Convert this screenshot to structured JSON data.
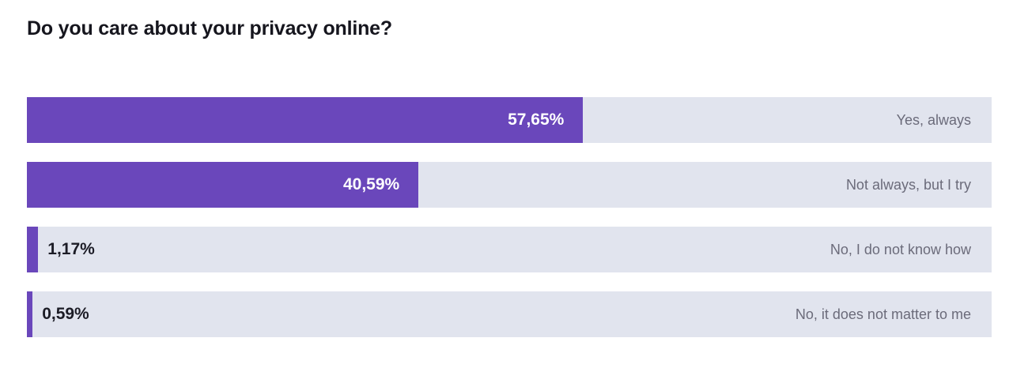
{
  "chart_data": {
    "type": "bar",
    "orientation": "horizontal",
    "title": "Do you care about your privacy online?",
    "categories": [
      "Yes, always",
      "Not always, but I try",
      "No, I do not know how",
      "No, it does not matter to me"
    ],
    "values": [
      57.65,
      40.59,
      1.17,
      0.59
    ],
    "value_labels": [
      "57,65%",
      "40,59%",
      "1,17%",
      "0,59%"
    ],
    "xlim": [
      0,
      100
    ],
    "grid": false,
    "colors": {
      "fill": "#6a47bb",
      "track": "#e1e4ee",
      "label": "#6b6b7a"
    }
  }
}
